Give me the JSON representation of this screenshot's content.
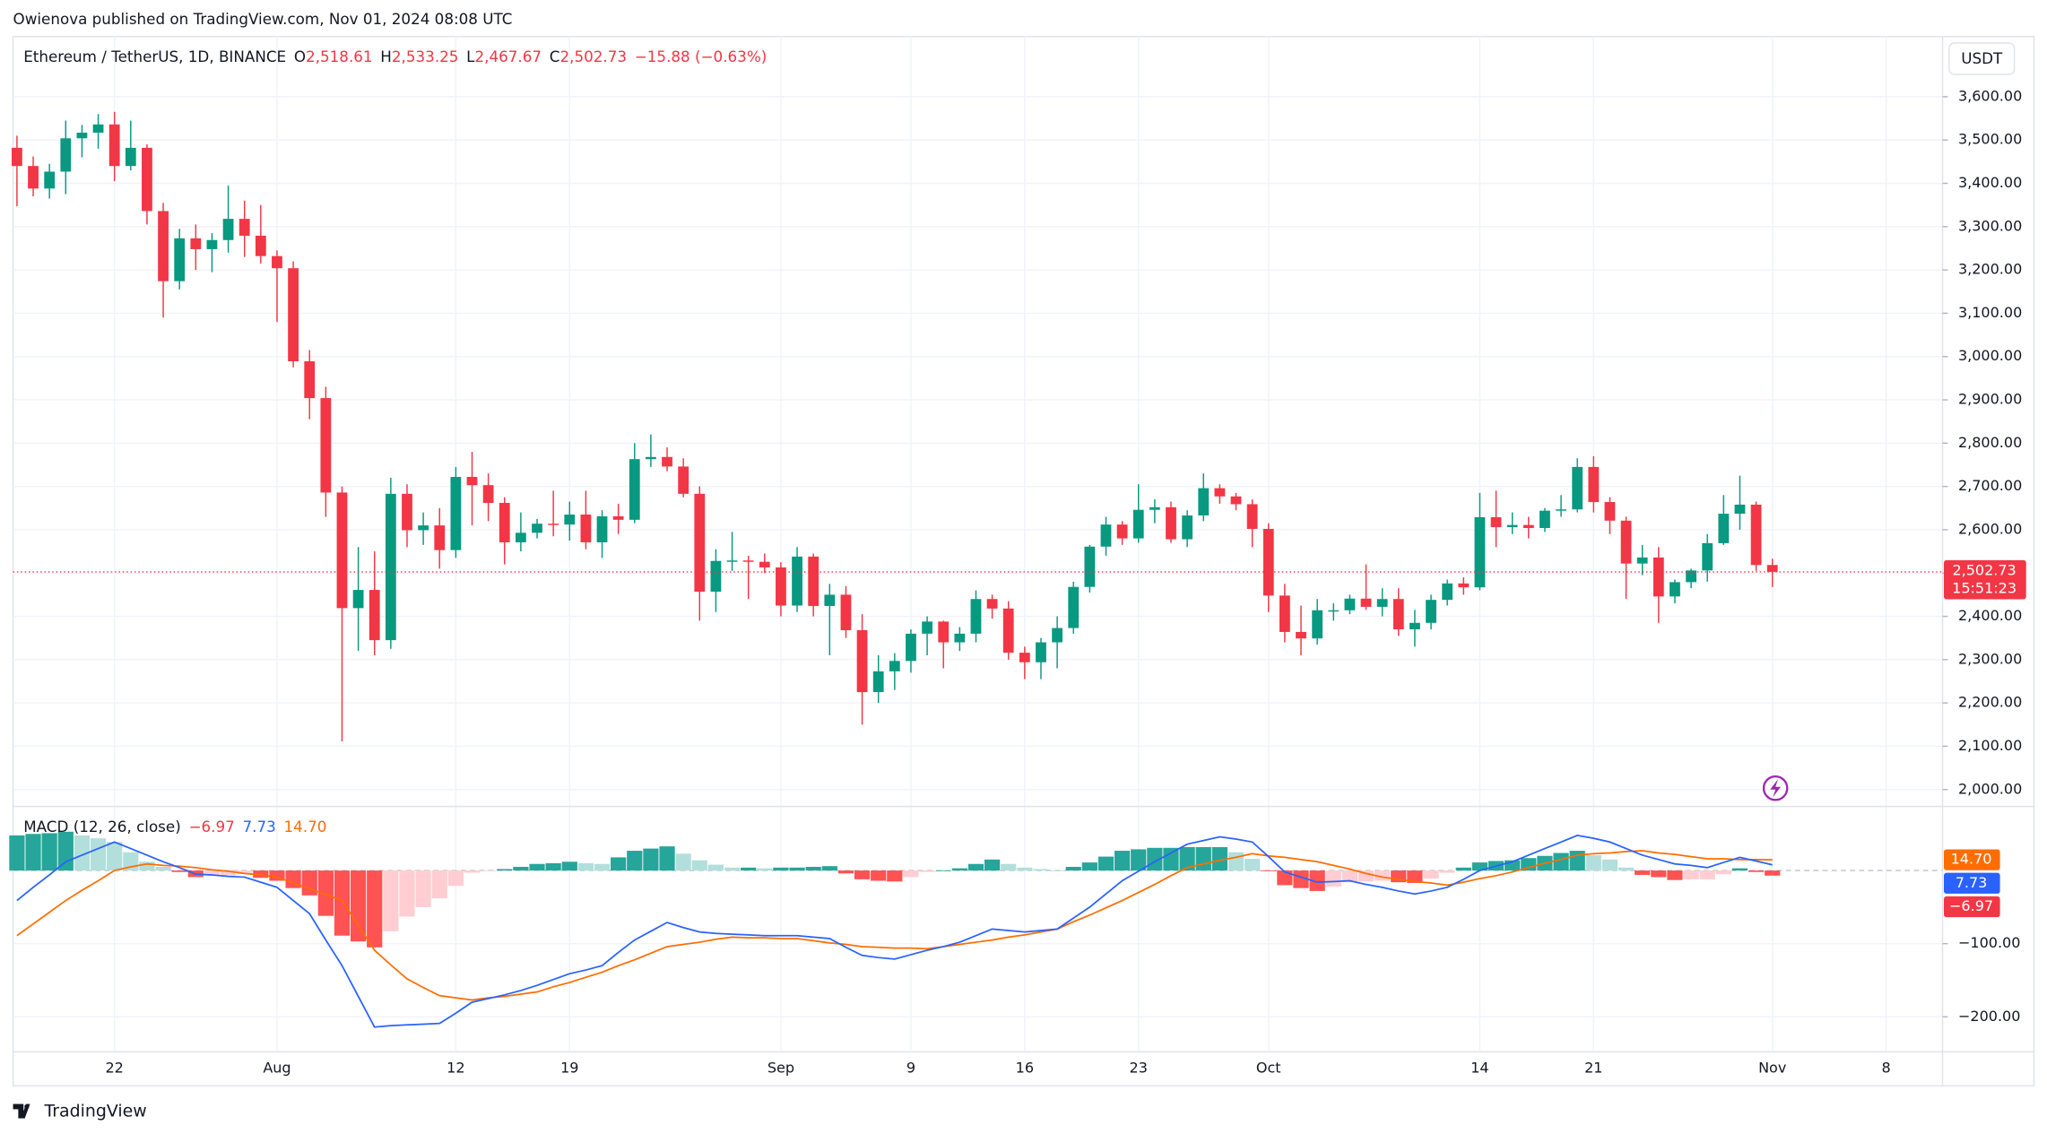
{
  "header": {
    "publisher": "Owienova published on TradingView.com, Nov 01, 2024 08:08 UTC"
  },
  "footer": {
    "brand": "TradingView"
  },
  "chart_data": [
    {
      "type": "candlestick",
      "title": "Ethereum / TetherUS, 1D, BINANCE",
      "currency": "USDT",
      "legend": [
        {
          "key": "O",
          "value": 2518.61,
          "label": "2,518.61"
        },
        {
          "key": "H",
          "value": 2533.25,
          "label": "2,533.25"
        },
        {
          "key": "L",
          "value": 2467.67,
          "label": "2,467.67"
        },
        {
          "key": "C",
          "value": 2502.73,
          "label": "2,502.73"
        }
      ],
      "change": {
        "value": -15.88,
        "label": "−15.88 (−0.63%)"
      },
      "last_price": {
        "value": 2502.73,
        "label": "2,502.73"
      },
      "countdown": "15:51:23",
      "up_color": "#089981",
      "down_color": "#f23645",
      "x": [
        0,
        1,
        2,
        3,
        4,
        5,
        6,
        7,
        8,
        9,
        10,
        11,
        12,
        13,
        14,
        15,
        16,
        17,
        18,
        19,
        20,
        21,
        22,
        23,
        24,
        25,
        26,
        27,
        28,
        29,
        30,
        31,
        32,
        33,
        34,
        35,
        36,
        37,
        38,
        39,
        40,
        41,
        42,
        43,
        44,
        45,
        46,
        47,
        48,
        49,
        50,
        51,
        52,
        53,
        54,
        55,
        56,
        57,
        58,
        59,
        60,
        61,
        62,
        63,
        64,
        65,
        66,
        67,
        68,
        69,
        70,
        71,
        72,
        73,
        74,
        75,
        76,
        77,
        78,
        79,
        80,
        81,
        82,
        83,
        84,
        85,
        86,
        87,
        88,
        89,
        90,
        91,
        92,
        93,
        94,
        95,
        96,
        97,
        98,
        99,
        100,
        101,
        102,
        103,
        104,
        105,
        106,
        107,
        108
      ],
      "open": [
        3482,
        3440,
        3388,
        3427,
        3504,
        3517,
        3536,
        3440,
        3482,
        3336,
        3174,
        3273,
        3248,
        3269,
        3318,
        3279,
        3232,
        3204,
        2989,
        2904,
        2686,
        2419,
        2461,
        2345,
        2683,
        2599,
        2610,
        2553,
        2722,
        2703,
        2662,
        2571,
        2593,
        2614,
        2612,
        2635,
        2571,
        2631,
        2623,
        2763,
        2768,
        2746,
        2683,
        2457,
        2528,
        2529,
        2526,
        2513,
        2425,
        2538,
        2424,
        2450,
        2368,
        2225,
        2273,
        2297,
        2360,
        2388,
        2340,
        2360,
        2440,
        2418,
        2316,
        2294,
        2340,
        2373,
        2468,
        2561,
        2612,
        2580,
        2646,
        2652,
        2578,
        2633,
        2696,
        2677,
        2659,
        2602,
        2448,
        2364,
        2349,
        2414,
        2414,
        2441,
        2422,
        2440,
        2370,
        2385,
        2438,
        2476,
        2467,
        2629,
        2606,
        2611,
        2604,
        2644,
        2647,
        2745,
        2664,
        2621,
        2522,
        2536,
        2446,
        2479,
        2506,
        2569,
        2637,
        2658,
        2518.61
      ],
      "high": [
        3510,
        3462,
        3445,
        3545,
        3535,
        3560,
        3565,
        3545,
        3490,
        3355,
        3295,
        3305,
        3285,
        3395,
        3360,
        3350,
        3245,
        3220,
        3015,
        2930,
        2700,
        2560,
        2550,
        2720,
        2705,
        2640,
        2650,
        2745,
        2780,
        2730,
        2675,
        2640,
        2625,
        2690,
        2665,
        2690,
        2645,
        2660,
        2800,
        2820,
        2790,
        2765,
        2700,
        2555,
        2595,
        2540,
        2545,
        2525,
        2560,
        2545,
        2475,
        2470,
        2405,
        2310,
        2315,
        2370,
        2400,
        2390,
        2375,
        2460,
        2450,
        2435,
        2330,
        2350,
        2400,
        2480,
        2565,
        2630,
        2620,
        2705,
        2670,
        2665,
        2645,
        2730,
        2705,
        2685,
        2670,
        2615,
        2475,
        2425,
        2440,
        2430,
        2450,
        2520,
        2465,
        2465,
        2415,
        2450,
        2485,
        2490,
        2685,
        2690,
        2640,
        2630,
        2650,
        2680,
        2765,
        2770,
        2675,
        2630,
        2565,
        2560,
        2485,
        2510,
        2590,
        2680,
        2725,
        2665,
        2533.25
      ],
      "low": [
        3347,
        3370,
        3365,
        3375,
        3460,
        3480,
        3405,
        3430,
        3305,
        3090,
        3155,
        3200,
        3195,
        3240,
        3230,
        3215,
        3080,
        2975,
        2855,
        2630,
        2111,
        2320,
        2310,
        2325,
        2560,
        2565,
        2510,
        2535,
        2610,
        2620,
        2520,
        2550,
        2580,
        2585,
        2575,
        2555,
        2535,
        2590,
        2615,
        2745,
        2735,
        2675,
        2390,
        2410,
        2505,
        2440,
        2500,
        2400,
        2410,
        2400,
        2310,
        2350,
        2150,
        2200,
        2230,
        2270,
        2310,
        2280,
        2320,
        2340,
        2395,
        2300,
        2255,
        2255,
        2280,
        2360,
        2455,
        2540,
        2565,
        2570,
        2615,
        2570,
        2560,
        2620,
        2660,
        2645,
        2560,
        2410,
        2340,
        2310,
        2335,
        2390,
        2405,
        2415,
        2400,
        2355,
        2330,
        2370,
        2425,
        2450,
        2460,
        2560,
        2590,
        2580,
        2595,
        2630,
        2640,
        2640,
        2590,
        2440,
        2495,
        2385,
        2430,
        2465,
        2480,
        2565,
        2600,
        2505,
        2467.67
      ],
      "close": [
        3440,
        3388,
        3427,
        3504,
        3517,
        3536,
        3440,
        3482,
        3336,
        3174,
        3273,
        3248,
        3269,
        3318,
        3279,
        3232,
        3204,
        2989,
        2904,
        2686,
        2419,
        2461,
        2345,
        2683,
        2599,
        2610,
        2553,
        2722,
        2703,
        2662,
        2571,
        2593,
        2614,
        2612,
        2635,
        2571,
        2631,
        2623,
        2763,
        2768,
        2746,
        2683,
        2457,
        2528,
        2529,
        2526,
        2513,
        2425,
        2538,
        2424,
        2450,
        2368,
        2225,
        2273,
        2297,
        2360,
        2388,
        2340,
        2360,
        2440,
        2418,
        2316,
        2294,
        2340,
        2373,
        2468,
        2561,
        2612,
        2580,
        2646,
        2652,
        2578,
        2633,
        2696,
        2677,
        2659,
        2602,
        2448,
        2364,
        2349,
        2414,
        2414,
        2441,
        2422,
        2440,
        2370,
        2385,
        2438,
        2476,
        2467,
        2629,
        2606,
        2611,
        2604,
        2644,
        2647,
        2745,
        2664,
        2621,
        2522,
        2536,
        2446,
        2479,
        2506,
        2569,
        2637,
        2658,
        2518.61,
        2502.73
      ],
      "xlim": [
        -0.24,
        118.47
      ],
      "xticks": [
        {
          "value": 6,
          "label": "22"
        },
        {
          "value": 16,
          "label": "Aug"
        },
        {
          "value": 27,
          "label": "12"
        },
        {
          "value": 34,
          "label": "19"
        },
        {
          "value": 47,
          "label": "Sep"
        },
        {
          "value": 55,
          "label": "9"
        },
        {
          "value": 62,
          "label": "16"
        },
        {
          "value": 69,
          "label": "23"
        },
        {
          "value": 77,
          "label": "Oct"
        },
        {
          "value": 90,
          "label": "14"
        },
        {
          "value": 97,
          "label": "21"
        },
        {
          "value": 108,
          "label": "Nov"
        },
        {
          "value": 115,
          "label": "8"
        }
      ],
      "ylim": [
        1970,
        3739
      ],
      "yticks": [
        {
          "value": 2000,
          "label": "2,000.00"
        },
        {
          "value": 2100,
          "label": "2,100.00"
        },
        {
          "value": 2200,
          "label": "2,200.00"
        },
        {
          "value": 2300,
          "label": "2,300.00"
        },
        {
          "value": 2400,
          "label": "2,400.00"
        },
        {
          "value": 2500,
          "label": "2,500.00"
        },
        {
          "value": 2600,
          "label": "2,600.00"
        },
        {
          "value": 2700,
          "label": "2,700.00"
        },
        {
          "value": 2800,
          "label": "2,800.00"
        },
        {
          "value": 2900,
          "label": "2,900.00"
        },
        {
          "value": 3000,
          "label": "3,000.00"
        },
        {
          "value": 3100,
          "label": "3,100.00"
        },
        {
          "value": 3200,
          "label": "3,200.00"
        },
        {
          "value": 3300,
          "label": "3,300.00"
        },
        {
          "value": 3400,
          "label": "3,400.00"
        },
        {
          "value": 3500,
          "label": "3,500.00"
        },
        {
          "value": 3600,
          "label": "3,600.00"
        }
      ],
      "grid": true
    },
    {
      "type": "macd",
      "title": "MACD (12, 26, close)",
      "legend_values": [
        {
          "value": -6.97,
          "label": "−6.97",
          "color": "#f23645"
        },
        {
          "value": 7.73,
          "label": "7.73",
          "color": "#2962ff"
        },
        {
          "value": 14.7,
          "label": "14.70",
          "color": "#ff6d00"
        }
      ],
      "histogram": {
        "colors": [
          "#26a69a",
          "#b2dfdb",
          "#ffcdd2",
          "#ff5252"
        ],
        "values": [
          48,
          50,
          51,
          53,
          48,
          44,
          39,
          25,
          12,
          5,
          -2,
          -9,
          -7,
          -7,
          -5,
          -10,
          -14,
          -24,
          -34,
          -62,
          -89,
          -97,
          -105,
          -83,
          -63,
          -50,
          -38,
          -21,
          -3,
          -1,
          2,
          5,
          9,
          10,
          12,
          10,
          9,
          18,
          27,
          30,
          33,
          23,
          14,
          8,
          4,
          4,
          3,
          4,
          4,
          5,
          6,
          -4,
          -12,
          -14,
          -15,
          -9,
          -2,
          0,
          3,
          9,
          15,
          9,
          4,
          2,
          0,
          5,
          11,
          19,
          27,
          29,
          31,
          31,
          32,
          32,
          32,
          25,
          16,
          -1,
          -20,
          -24,
          -28,
          -22,
          -16,
          -15,
          -14,
          -16,
          -17,
          -11,
          -3,
          4,
          11,
          13,
          14,
          17,
          20,
          24,
          27,
          21,
          15,
          4,
          -6,
          -9,
          -13,
          -12,
          -12,
          -5,
          3,
          -2,
          -6.97
        ]
      },
      "macd_line": {
        "color": "#2962ff",
        "values": [
          -41,
          -23,
          -6,
          12,
          21,
          30,
          39,
          30,
          21,
          12,
          4,
          -5,
          -6,
          -8,
          -9,
          -16,
          -23,
          -41,
          -59,
          -95,
          -130,
          -172,
          -214,
          -212,
          -211,
          -210,
          -209,
          -195,
          -180,
          -175,
          -170,
          -164,
          -157,
          -149,
          -141,
          -136,
          -130,
          -112,
          -95,
          -83,
          -71,
          -78,
          -84,
          -86,
          -87,
          -88,
          -89,
          -89,
          -89,
          -91,
          -93,
          -105,
          -116,
          -119,
          -121,
          -115,
          -109,
          -104,
          -98,
          -89,
          -80,
          -82,
          -84,
          -82,
          -80,
          -65,
          -50,
          -32,
          -14,
          -1,
          12,
          24,
          36,
          41,
          46,
          43,
          39,
          19,
          -2,
          -9,
          -16,
          -15,
          -14,
          -19,
          -23,
          -28,
          -32,
          -28,
          -23,
          -12,
          0,
          6,
          12,
          21,
          30,
          39,
          48,
          44,
          39,
          30,
          21,
          15,
          9,
          7,
          4,
          11,
          18,
          13,
          7.73
        ]
      },
      "signal_line": {
        "color": "#ff6d00",
        "values": [
          -89,
          -73,
          -57,
          -41,
          -27,
          -14,
          0,
          5,
          9,
          7,
          6,
          4,
          1,
          -1,
          -4,
          -6,
          -9,
          -17,
          -25,
          -33,
          -41,
          -75,
          -109,
          -129,
          -148,
          -160,
          -171,
          -174,
          -177,
          -174,
          -172,
          -169,
          -166,
          -159,
          -153,
          -146,
          -139,
          -130,
          -122,
          -113,
          -104,
          -101,
          -98,
          -94,
          -91,
          -92,
          -92,
          -93,
          -93,
          -96,
          -99,
          -101,
          -104,
          -105,
          -106,
          -106,
          -107,
          -104,
          -101,
          -98,
          -95,
          -91,
          -88,
          -84,
          -80,
          -70,
          -61,
          -51,
          -41,
          -30,
          -19,
          -7,
          4,
          9,
          14,
          18,
          23,
          20,
          18,
          15,
          12,
          7,
          2,
          -4,
          -9,
          -12,
          -15,
          -17,
          -20,
          -16,
          -11,
          -7,
          -2,
          4,
          10,
          15,
          21,
          23,
          24,
          26,
          27,
          24,
          22,
          19,
          16,
          16,
          15,
          15,
          14.7
        ]
      },
      "ylim": [
        -246,
        84
      ],
      "yticks": [
        {
          "value": -100,
          "label": "−100.00"
        },
        {
          "value": -200,
          "label": "−200.00"
        }
      ],
      "grid": true
    }
  ]
}
